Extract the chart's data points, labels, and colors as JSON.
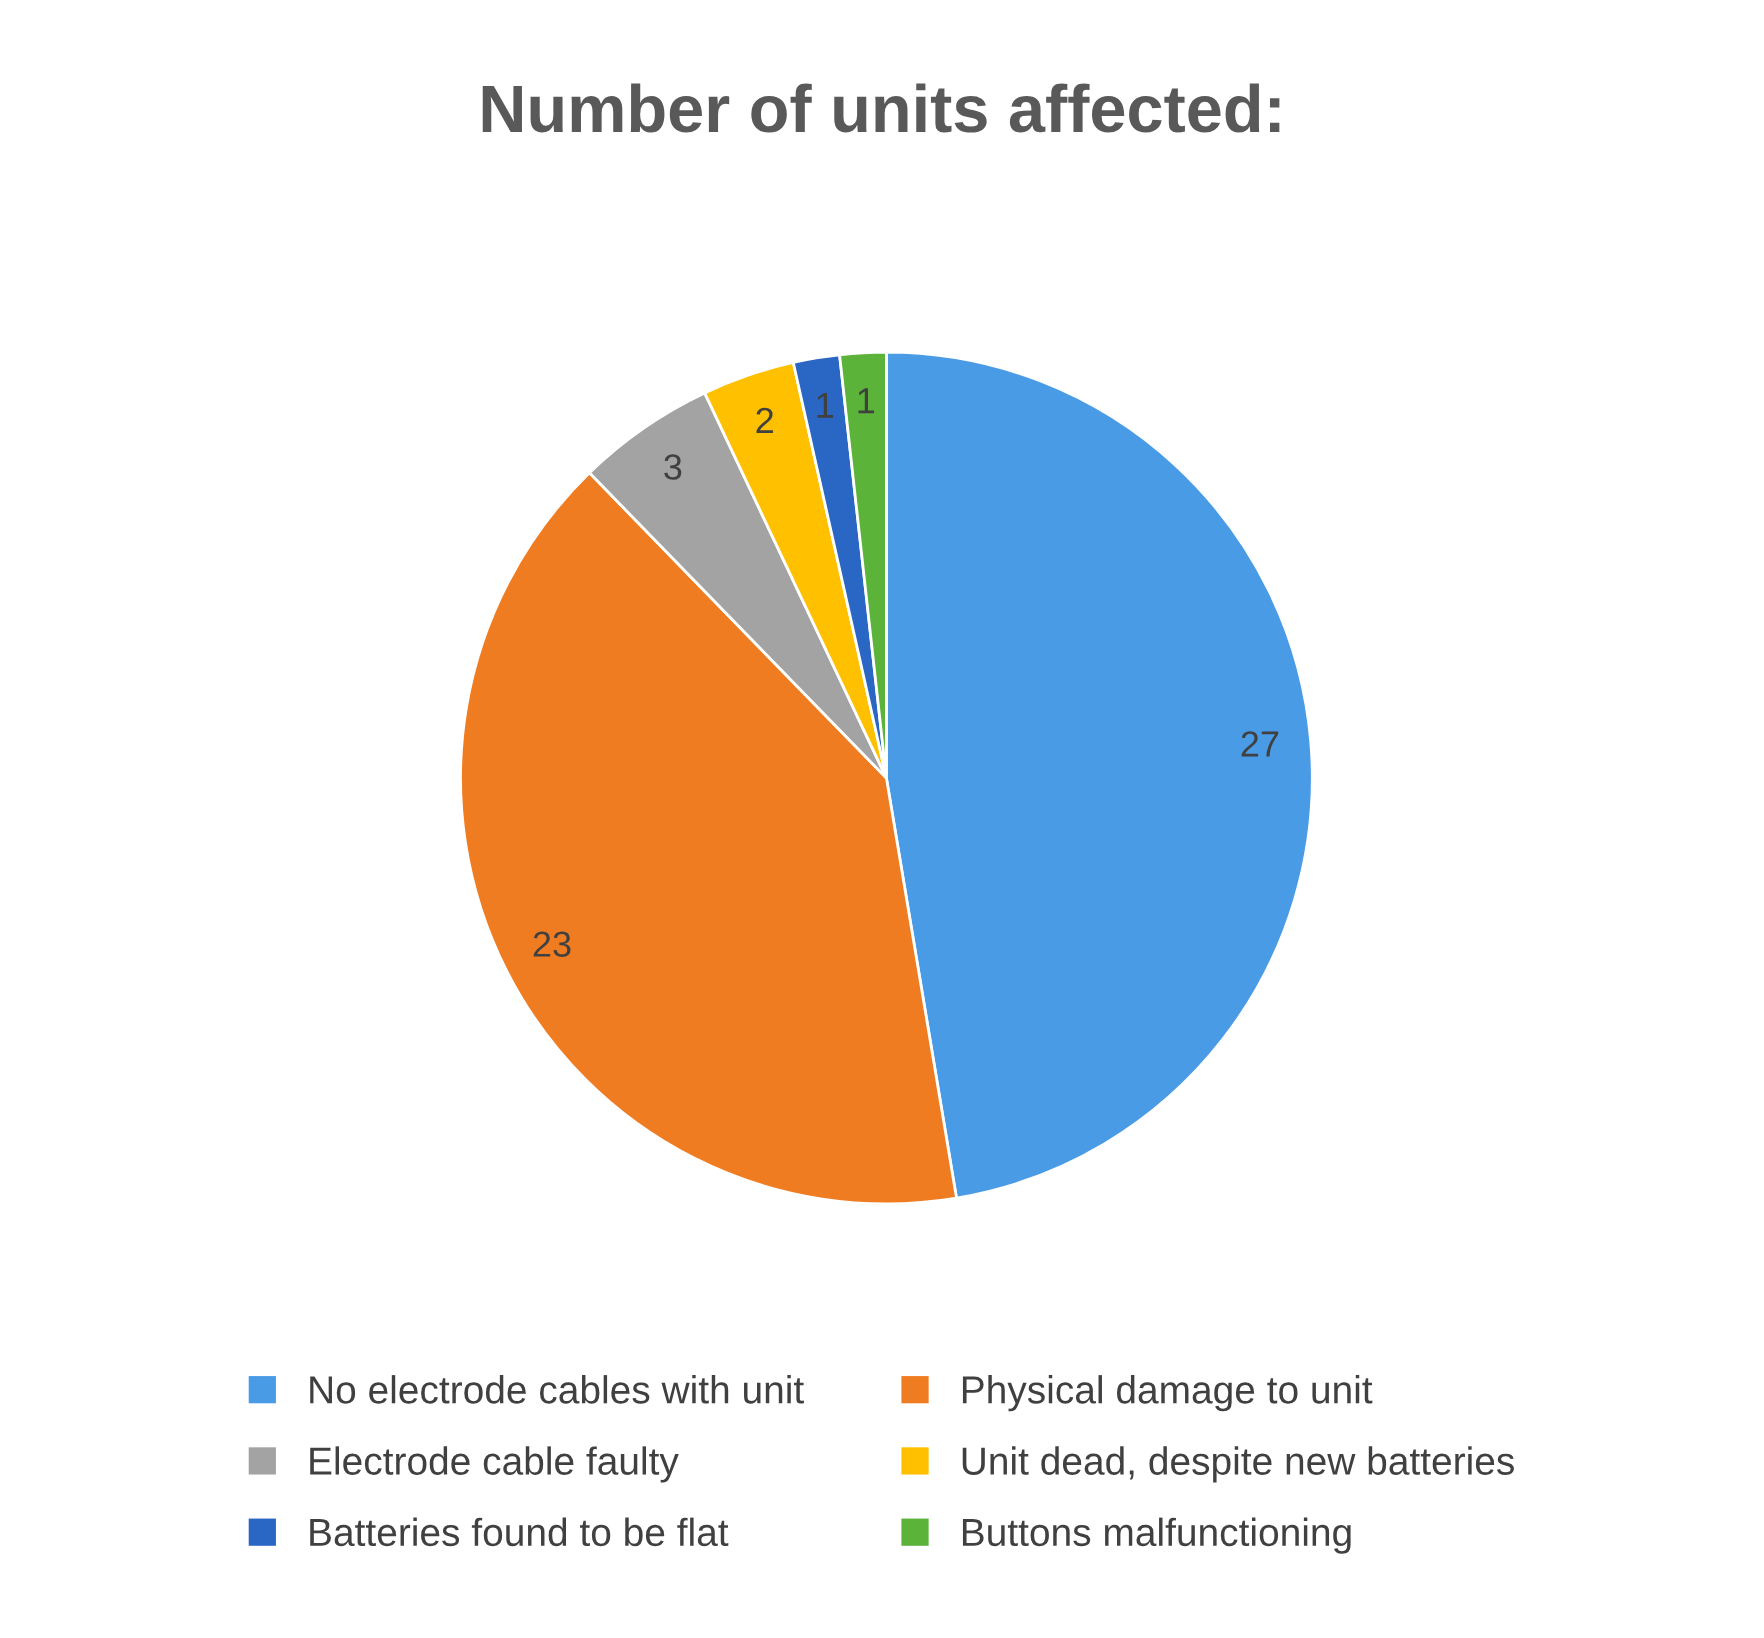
{
  "chart_data": {
    "type": "pie",
    "title": "Number of units affected:",
    "categories": [
      "No electrode cables with unit",
      "Physical damage to unit",
      "Electrode cable faulty",
      "Unit dead, despite new batteries",
      "Batteries found to be flat",
      "Buttons malfunctioning"
    ],
    "values": [
      27,
      23,
      3,
      2,
      1,
      1
    ],
    "colors": [
      "#4a9be6",
      "#f07c22",
      "#a3a3a3",
      "#ffc000",
      "#2a67c4",
      "#5bb339"
    ],
    "data_labels": true,
    "legend": "bottom"
  }
}
